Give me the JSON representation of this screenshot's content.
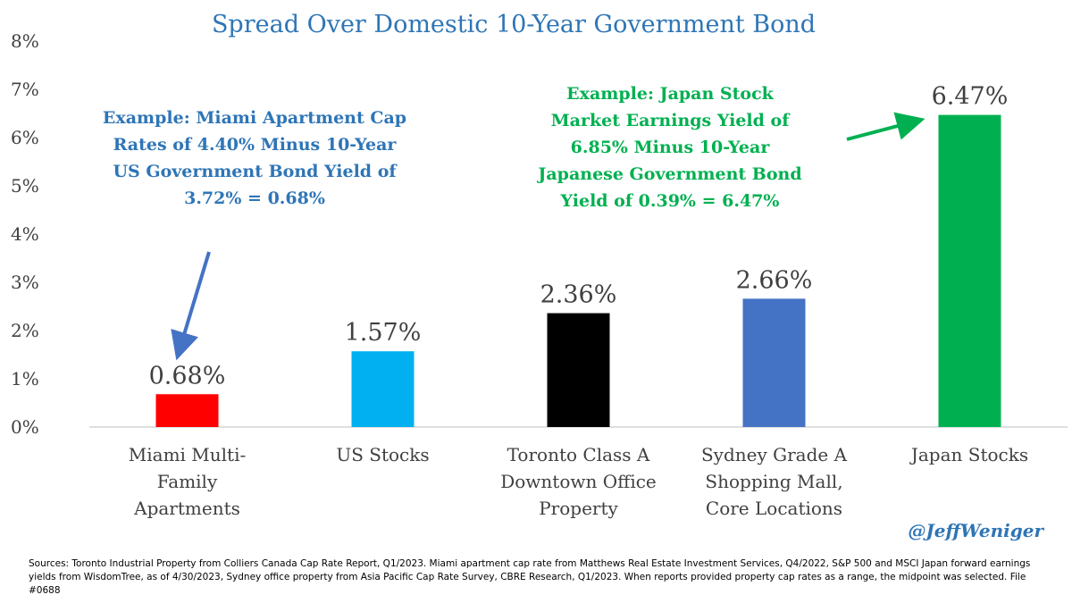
{
  "chart_data": {
    "type": "bar",
    "title": "Spread Over Domestic 10-Year Government Bond",
    "categories": [
      [
        "Miami Multi-",
        "Family",
        "Apartments"
      ],
      [
        "US Stocks"
      ],
      [
        "Toronto Class A",
        "Downtown Office",
        "Property"
      ],
      [
        "Sydney Grade A",
        "Shopping Mall,",
        "Core Locations"
      ],
      [
        "Japan Stocks"
      ]
    ],
    "values": [
      0.68,
      1.57,
      2.36,
      2.66,
      6.47
    ],
    "data_labels": [
      "0.68%",
      "1.57%",
      "2.36%",
      "2.66%",
      "6.47%"
    ],
    "bar_colors": [
      "#FF0000",
      "#00B0F0",
      "#000000",
      "#4472C4",
      "#00B050"
    ],
    "ylim": [
      0,
      8
    ],
    "yticks": [
      "0%",
      "1%",
      "2%",
      "3%",
      "4%",
      "5%",
      "6%",
      "7%",
      "8%"
    ],
    "xlabel": "",
    "ylabel": "",
    "grid": false
  },
  "annotations": {
    "miami": {
      "lines": [
        "Example: Miami Apartment Cap",
        "Rates of 4.40% Minus 10-Year",
        "US Government Bond Yield of",
        "3.72% = 0.68%"
      ],
      "color": "#2E75B6"
    },
    "japan": {
      "lines": [
        "Example: Japan Stock",
        "Market Earnings Yield of",
        "6.85% Minus 10-Year",
        "Japanese Government Bond",
        "Yield of 0.39% = 6.47%"
      ],
      "color": "#00B050"
    }
  },
  "handle": "@JeffWeniger",
  "sources": "Sources: Toronto Industrial Property from Colliers Canada Cap Rate Report, Q1/2023. Miami apartment cap rate from Matthews Real Estate Investment Services, Q4/2022, S&P 500 and MSCI Japan forward earnings yields from WisdomTree, as of 4/30/2023, Sydney office property from Asia Pacific Cap Rate Survey, CBRE Research, Q1/2023. When reports provided property cap rates as a range, the midpoint was selected. File #0688",
  "colors": {
    "title": "#2E75B6",
    "axis": "#BFBFBF",
    "text": "#404040"
  }
}
